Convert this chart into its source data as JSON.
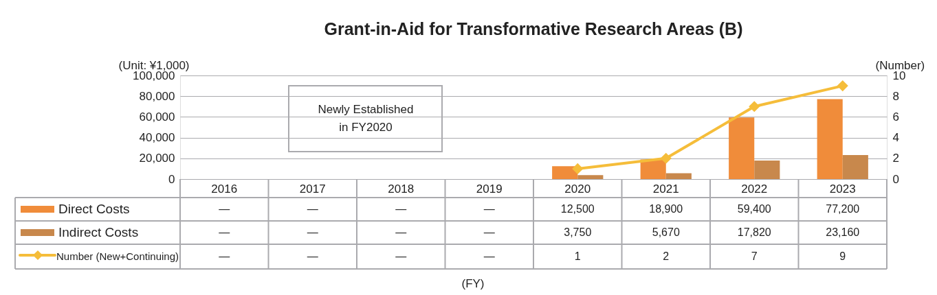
{
  "chart_data": {
    "type": "bar",
    "title": "Grant-in-Aid for Transformative Research Areas (B)",
    "categories": [
      "2016",
      "2017",
      "2018",
      "2019",
      "2020",
      "2021",
      "2022",
      "2023"
    ],
    "ylabel": "(Unit: ¥1,000)",
    "y2label": "(Number)",
    "series": [
      {
        "name": "Direct Costs",
        "color": "#f08c3a",
        "values": [
          null,
          null,
          null,
          null,
          12500,
          18900,
          59400,
          77200
        ],
        "value_labels": [
          "—",
          "—",
          "—",
          "—",
          "12,500",
          "18,900",
          "59,400",
          "77,200"
        ]
      },
      {
        "name": "Indirect Costs",
        "color": "#c8884c",
        "values": [
          null,
          null,
          null,
          null,
          3750,
          5670,
          17820,
          23160
        ],
        "value_labels": [
          "—",
          "—",
          "—",
          "—",
          "3,750",
          "5,670",
          "17,820",
          "23,160"
        ]
      },
      {
        "name": "Number (New+Continuing)",
        "type": "line",
        "axis": "y2",
        "marker": "diamond",
        "color": "#f5bd3a",
        "values": [
          null,
          null,
          null,
          null,
          1,
          2,
          7,
          9
        ],
        "value_labels": [
          "—",
          "—",
          "—",
          "—",
          "1",
          "2",
          "7",
          "9"
        ]
      }
    ],
    "ylim": [
      0,
      100000
    ],
    "yticks": [
      0,
      {
        "value": 20000,
        "label": "20,000"
      },
      {
        "value": 40000,
        "label": "40,000"
      },
      {
        "value": 60000,
        "label": "60,000"
      },
      {
        "value": 80000,
        "label": "80,000"
      },
      {
        "value": 100000,
        "label": "100,000"
      }
    ],
    "y2lim": [
      0,
      10
    ],
    "y2ticks": [
      0,
      2,
      4,
      6,
      8,
      10
    ],
    "grid": "y",
    "legend": "bottom",
    "annotations": [
      "Newly Established\nin FY2020",
      "(FY)"
    ]
  }
}
